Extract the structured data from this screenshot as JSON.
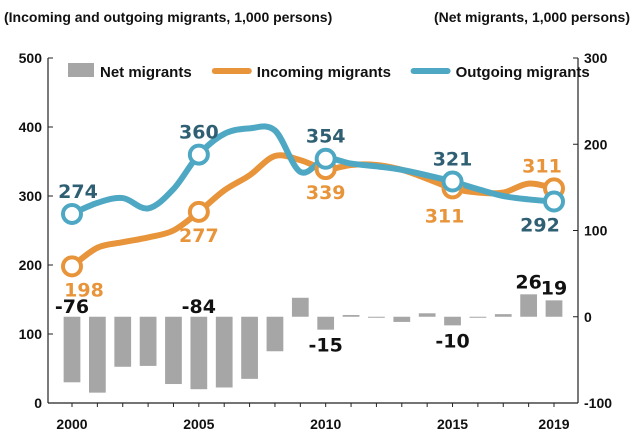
{
  "chart_data": {
    "type": "bar+line",
    "left_axis_title": "(Incoming and outgoing migrants, 1,000 persons)",
    "right_axis_title": "(Net migrants, 1,000 persons)",
    "x_tick_labels": [
      "2000",
      "2005",
      "2010",
      "2015",
      "2019"
    ],
    "left_ylim": [
      0,
      500
    ],
    "left_yticks": [
      "0",
      "100",
      "200",
      "300",
      "400",
      "500"
    ],
    "right_ylim": [
      -100,
      300
    ],
    "right_yticks": [
      "-100",
      "0",
      "100",
      "200",
      "300"
    ],
    "legend_placement": "top",
    "years": [
      2000,
      2001,
      2002,
      2003,
      2004,
      2005,
      2006,
      2007,
      2008,
      2009,
      2010,
      2011,
      2012,
      2013,
      2014,
      2015,
      2016,
      2017,
      2018,
      2019
    ],
    "series": [
      {
        "name": "Net migrants",
        "kind": "bar",
        "axis": "right",
        "color": "#a6a6a6",
        "values": [
          -76,
          -88,
          -58,
          -57,
          -78,
          -84,
          -82,
          -72,
          -40,
          22,
          -15,
          2,
          -1,
          -6,
          4,
          -10,
          -1,
          3,
          26,
          19
        ]
      },
      {
        "name": "Incoming migrants",
        "kind": "line",
        "axis": "left",
        "color": "#e8943a",
        "values": [
          198,
          225,
          233,
          240,
          250,
          277,
          308,
          330,
          358,
          352,
          339,
          345,
          345,
          338,
          325,
          311,
          305,
          305,
          318,
          311
        ]
      },
      {
        "name": "Outgoing migrants",
        "kind": "line",
        "axis": "left",
        "color": "#4ea8c4",
        "values": [
          274,
          290,
          297,
          282,
          310,
          360,
          390,
          398,
          395,
          335,
          354,
          347,
          343,
          338,
          330,
          321,
          310,
          300,
          295,
          292
        ]
      }
    ],
    "markers": {
      "Incoming migrants": [
        2000,
        2005,
        2010,
        2015,
        2019
      ],
      "Outgoing migrants": [
        2000,
        2005,
        2010,
        2015,
        2019
      ]
    },
    "data_labels": [
      {
        "series": "Net migrants",
        "year": 2000,
        "text": "-76",
        "color": "#111111"
      },
      {
        "series": "Net migrants",
        "year": 2005,
        "text": "-84",
        "color": "#111111"
      },
      {
        "series": "Net migrants",
        "year": 2010,
        "text": "-15",
        "color": "#111111"
      },
      {
        "series": "Net migrants",
        "year": 2015,
        "text": "-10",
        "color": "#111111"
      },
      {
        "series": "Net migrants",
        "year": 2018,
        "text": "26",
        "color": "#111111"
      },
      {
        "series": "Net migrants",
        "year": 2019,
        "text": "19",
        "color": "#111111"
      },
      {
        "series": "Incoming migrants",
        "year": 2000,
        "text": "198",
        "color": "#e8943a"
      },
      {
        "series": "Incoming migrants",
        "year": 2005,
        "text": "277",
        "color": "#e8943a"
      },
      {
        "series": "Incoming migrants",
        "year": 2010,
        "text": "339",
        "color": "#e8943a"
      },
      {
        "series": "Incoming migrants",
        "year": 2015,
        "text": "311",
        "color": "#e8943a"
      },
      {
        "series": "Incoming migrants",
        "year": 2019,
        "text": "311",
        "color": "#e8943a"
      },
      {
        "series": "Outgoing migrants",
        "year": 2000,
        "text": "274",
        "color": "#2f5f73"
      },
      {
        "series": "Outgoing migrants",
        "year": 2005,
        "text": "360",
        "color": "#2f5f73"
      },
      {
        "series": "Outgoing migrants",
        "year": 2010,
        "text": "354",
        "color": "#2f5f73"
      },
      {
        "series": "Outgoing migrants",
        "year": 2015,
        "text": "321",
        "color": "#2f5f73"
      },
      {
        "series": "Outgoing migrants",
        "year": 2019,
        "text": "292",
        "color": "#2f5f73"
      }
    ],
    "grid": false
  }
}
